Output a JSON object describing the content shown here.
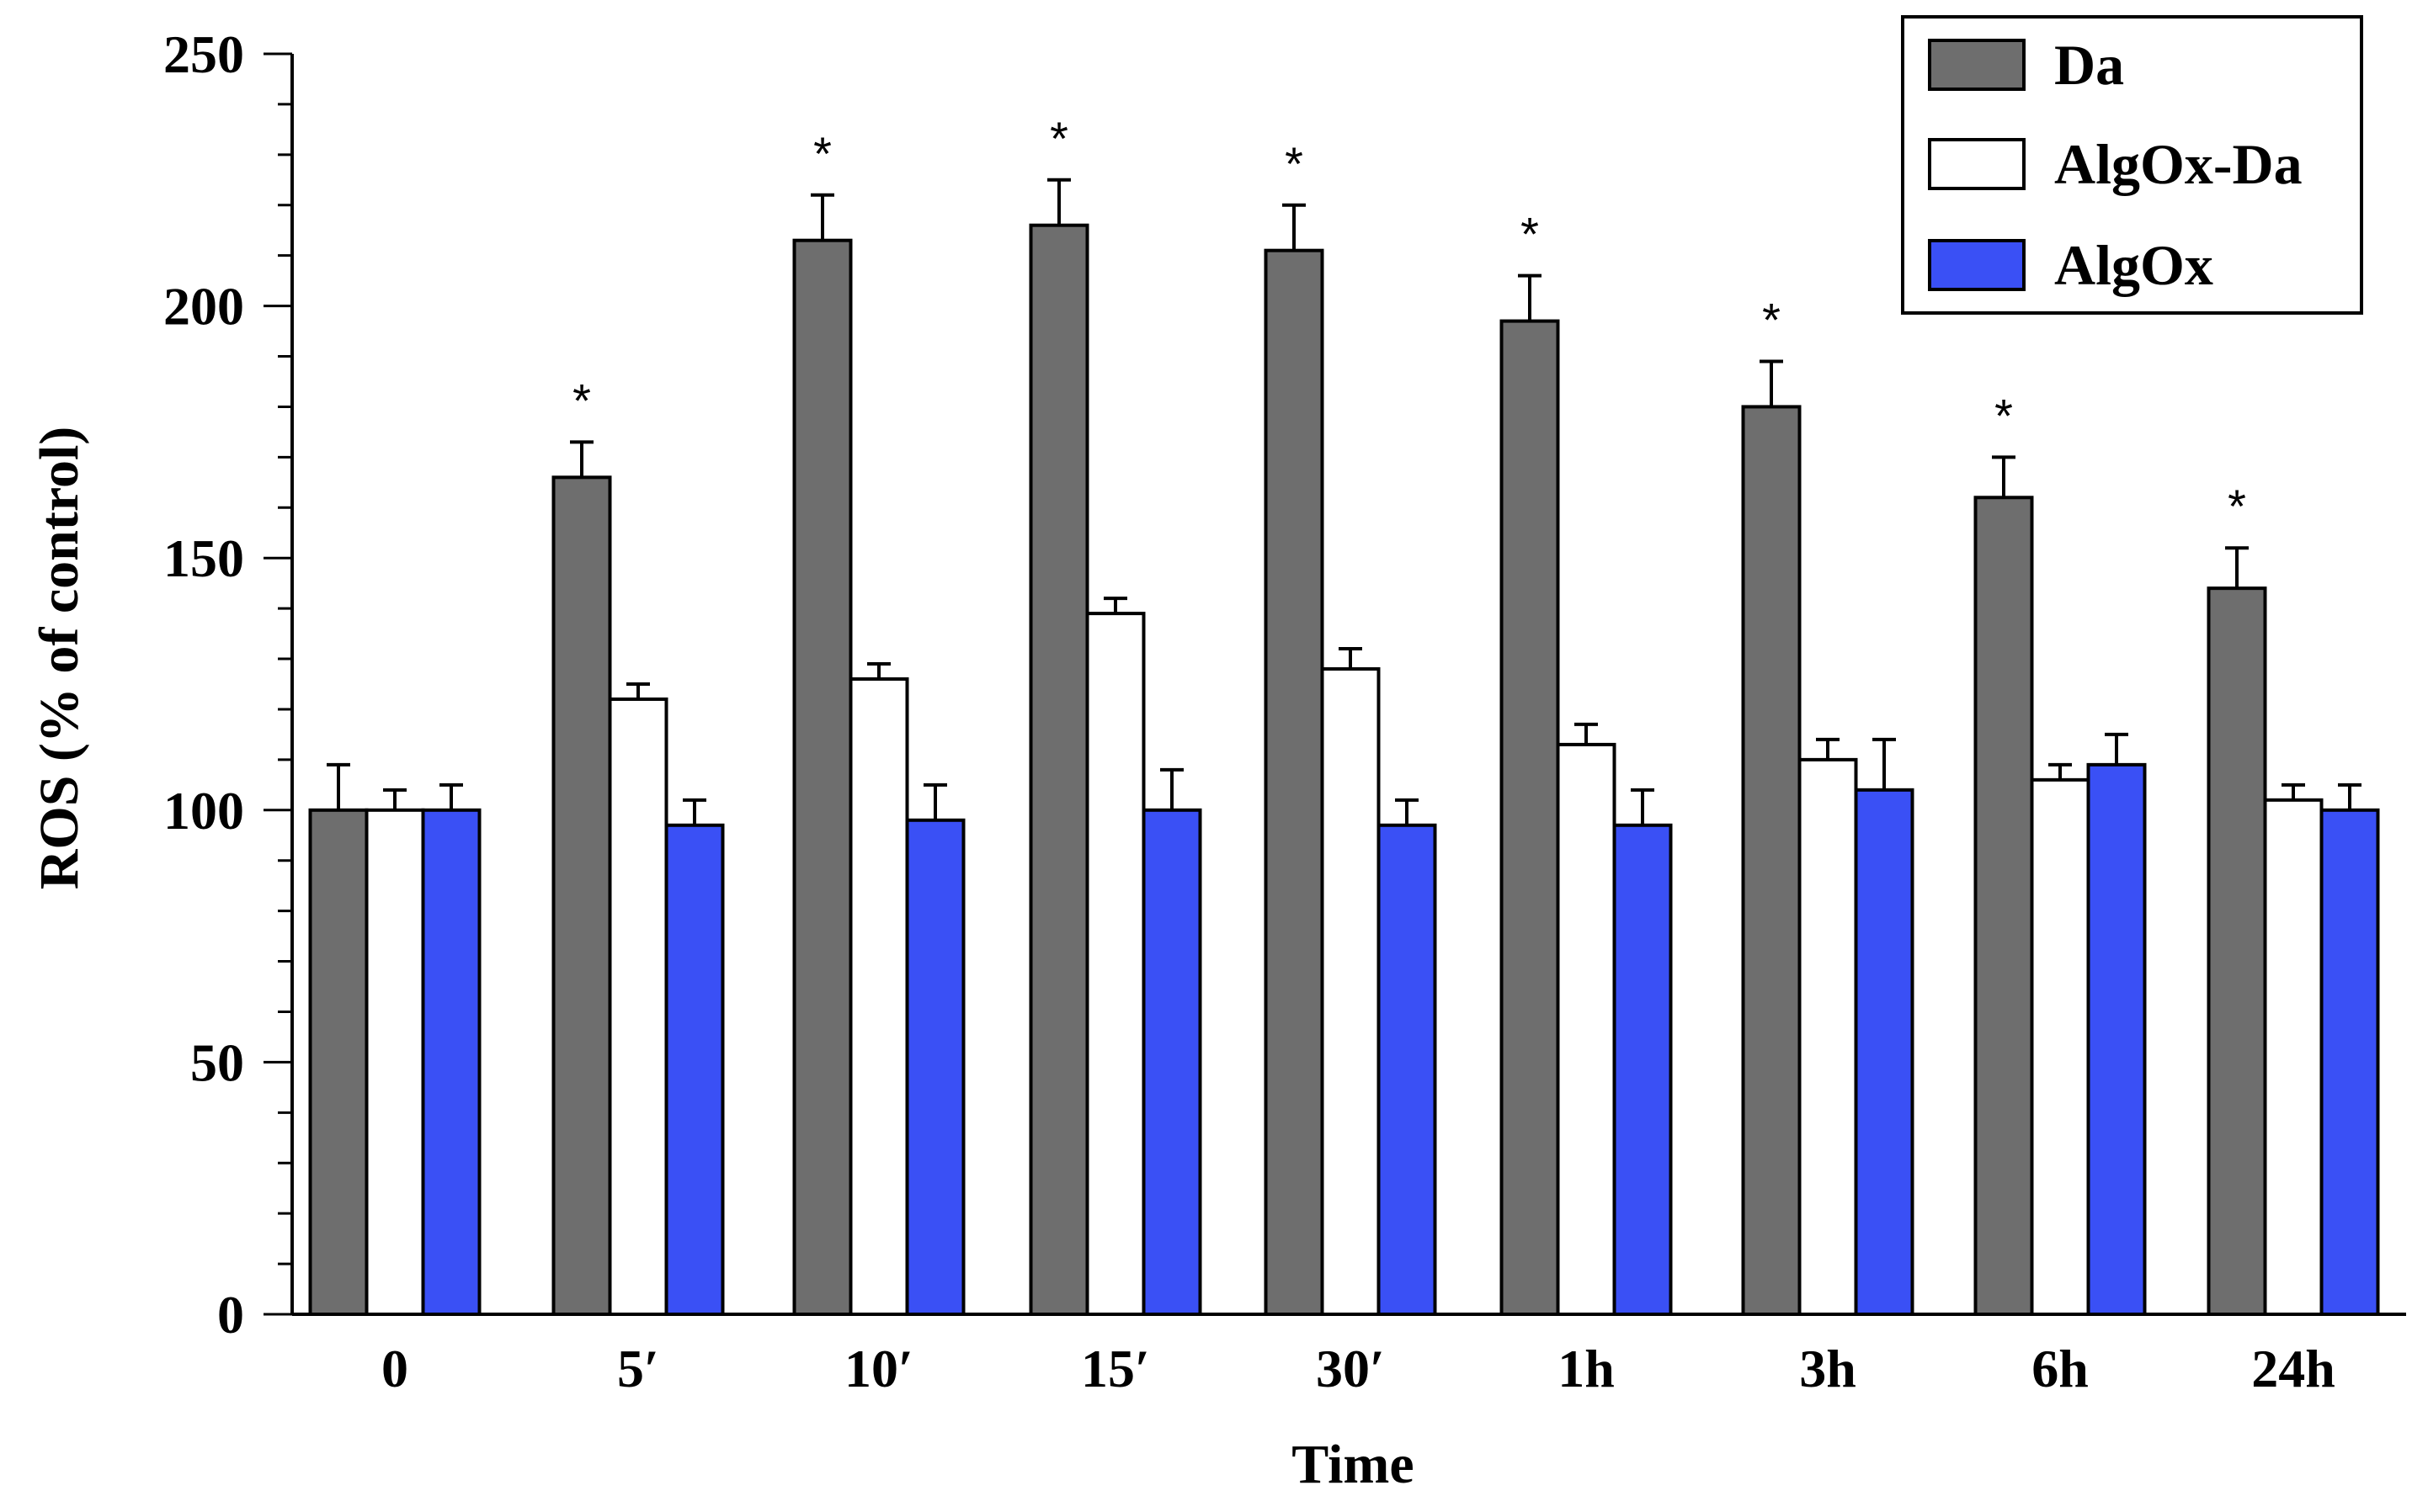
{
  "chart_data": {
    "type": "bar",
    "title": "",
    "xlabel": "Time",
    "ylabel": "ROS (% of control)",
    "ylim": [
      0,
      250
    ],
    "yticks": [
      0,
      50,
      100,
      150,
      200,
      250
    ],
    "categories": [
      "0",
      "5′",
      "10′",
      "15′",
      "30′",
      "1h",
      "3h",
      "6h",
      "24h"
    ],
    "series": [
      {
        "name": "Da",
        "color": "#6e6e6e",
        "values": [
          100,
          166,
          213,
          216,
          211,
          197,
          180,
          162,
          144
        ],
        "errors": [
          9,
          7,
          9,
          9,
          9,
          9,
          9,
          8,
          8
        ]
      },
      {
        "name": "AlgOx-Da",
        "color": "#ffffff",
        "values": [
          100,
          122,
          126,
          139,
          128,
          113,
          110,
          106,
          102
        ],
        "errors": [
          4,
          3,
          3,
          3,
          4,
          4,
          4,
          3,
          3
        ]
      },
      {
        "name": "AlgOx",
        "color": "#3a50f5",
        "values": [
          100,
          97,
          98,
          100,
          97,
          97,
          104,
          109,
          100
        ],
        "errors": [
          5,
          5,
          7,
          8,
          5,
          7,
          10,
          6,
          5
        ]
      }
    ],
    "significance": {
      "symbol": "*",
      "series": "Da",
      "flags": [
        false,
        true,
        true,
        true,
        true,
        true,
        true,
        true,
        true
      ]
    },
    "legend": {
      "position": "top-right",
      "entries": [
        "Da",
        "AlgOx-Da",
        "AlgOx"
      ]
    }
  }
}
